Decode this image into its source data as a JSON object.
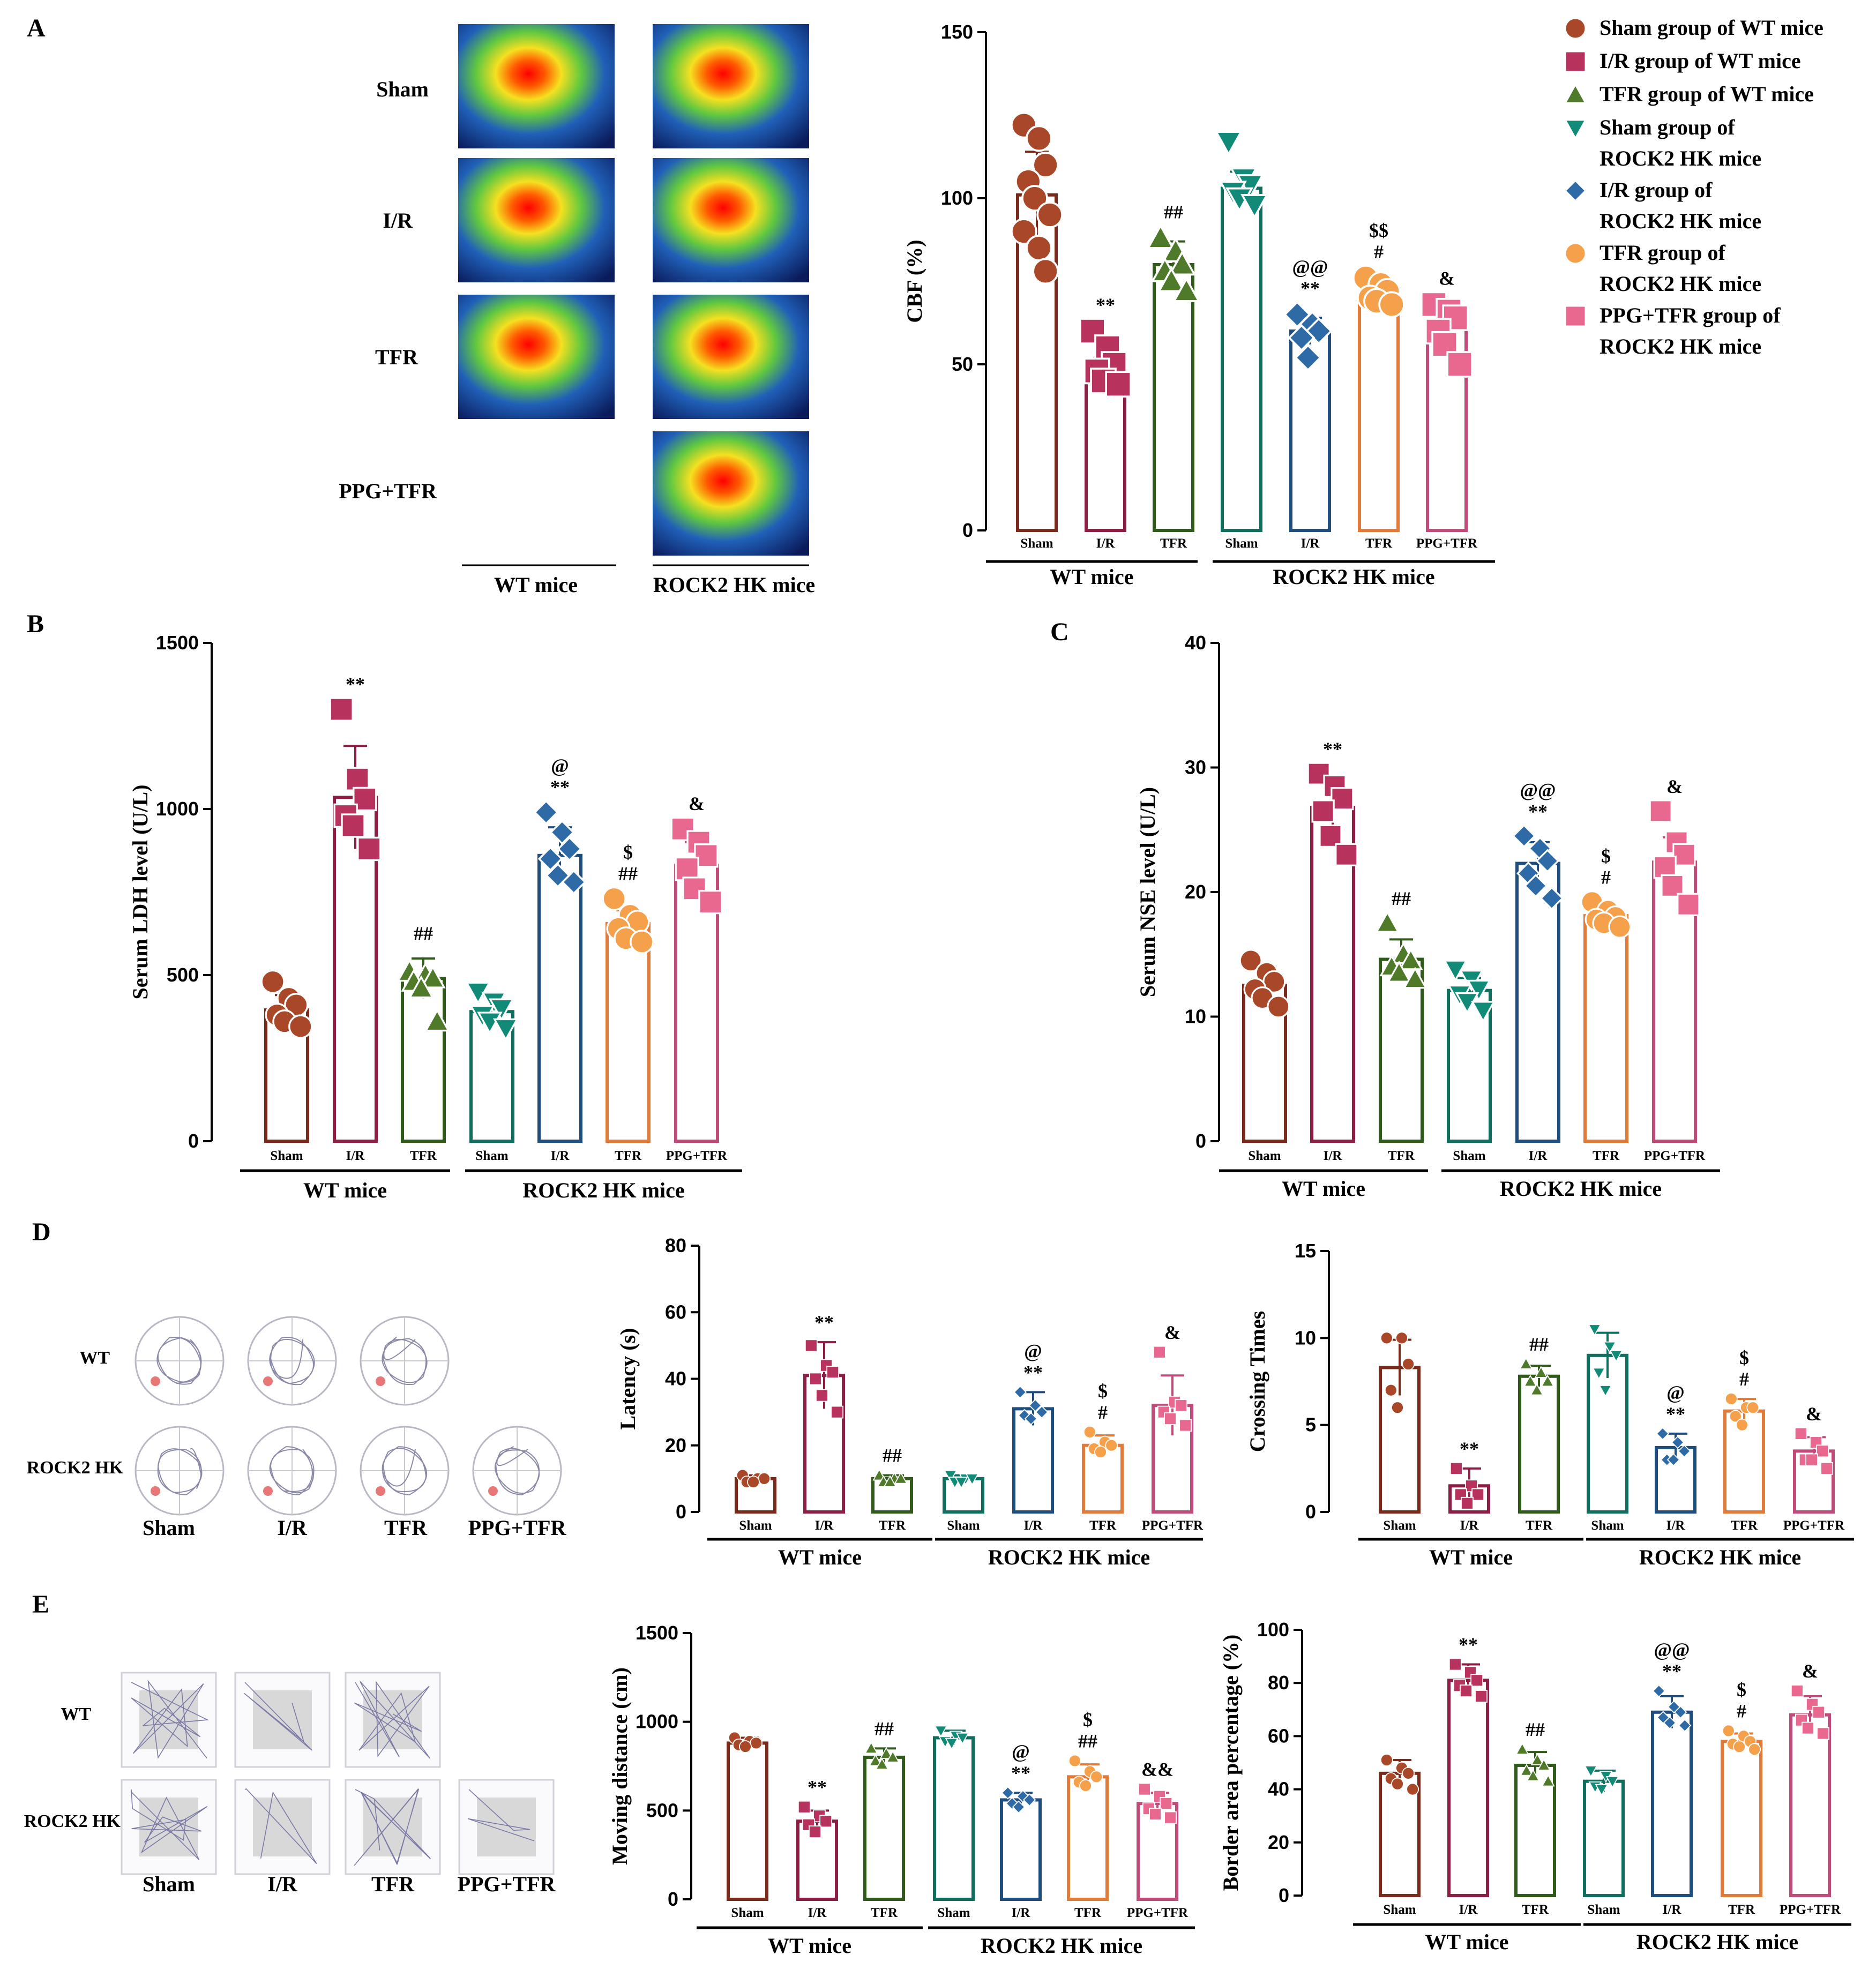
{
  "panel_labels": [
    "A",
    "B",
    "C",
    "D",
    "E"
  ],
  "group_labels": {
    "wt": "WT mice",
    "rock": "ROCK2 HK mice"
  },
  "categories": [
    "Sham",
    "I/R",
    "TFR",
    "Sham",
    "I/R",
    "TFR",
    "PPG+TFR"
  ],
  "colors": [
    "#7a2a1a",
    "#8c1d45",
    "#2f5a1a",
    "#0f6e5e",
    "#1f4e7e",
    "#e27a3a",
    "#c04a7a"
  ],
  "marker_colors": [
    "#a84828",
    "#b8325e",
    "#4e7a2a",
    "#128a78",
    "#2e6aa6",
    "#f5a04a",
    "#e86890"
  ],
  "markers": [
    "circle",
    "square",
    "triangle-up",
    "triangle-down",
    "diamond",
    "circle",
    "square"
  ],
  "legend": [
    {
      "marker": "circle",
      "color": "#a84828",
      "lines": [
        "Sham group of WT mice"
      ]
    },
    {
      "marker": "square",
      "color": "#b8325e",
      "lines": [
        "I/R group of WT mice"
      ]
    },
    {
      "marker": "triangle-up",
      "color": "#4e7a2a",
      "lines": [
        "TFR group of WT mice"
      ]
    },
    {
      "marker": "triangle-down",
      "color": "#128a78",
      "lines": [
        "Sham group of",
        "ROCK2 HK mice"
      ]
    },
    {
      "marker": "diamond",
      "color": "#2e6aa6",
      "lines": [
        "I/R group of",
        "ROCK2 HK mice"
      ]
    },
    {
      "marker": "circle",
      "color": "#f5a04a",
      "lines": [
        "TFR group of",
        "ROCK2 HK mice"
      ]
    },
    {
      "marker": "square",
      "color": "#e86890",
      "lines": [
        "PPG+TFR group of",
        "ROCK2 HK mice"
      ]
    }
  ],
  "panel_a_images": {
    "rows": [
      "Sham",
      "I/R",
      "TFR",
      "PPG+TFR"
    ],
    "columns": [
      "WT mice",
      "ROCK2 HK mice"
    ]
  },
  "panel_d_images": {
    "rows": [
      "WT",
      "ROCK2 HK"
    ],
    "columns": [
      "Sham",
      "I/R",
      "TFR",
      "PPG+TFR"
    ]
  },
  "panel_e_images": {
    "rows": [
      "WT",
      "ROCK2 HK"
    ],
    "columns": [
      "Sham",
      "I/R",
      "TFR",
      "PPG+TFR"
    ]
  },
  "chart_data": [
    {
      "id": "A",
      "type": "bar",
      "ylabel": "CBF (%)",
      "ylim": [
        0,
        150
      ],
      "yticks": [
        0,
        50,
        100,
        150
      ],
      "categories": [
        "Sham",
        "I/R",
        "TFR",
        "Sham",
        "I/R",
        "TFR",
        "PPG+TFR"
      ],
      "values": [
        101,
        47,
        80,
        103,
        60,
        70,
        61
      ],
      "errors": [
        13,
        5,
        7,
        5,
        4,
        3,
        5
      ],
      "points": [
        [
          122,
          118,
          110,
          105,
          100,
          95,
          90,
          85,
          78
        ],
        [
          60,
          55,
          50,
          48,
          45,
          44
        ],
        [
          88,
          84,
          80,
          78,
          75,
          72
        ],
        [
          117,
          106,
          104,
          102,
          100,
          98
        ],
        [
          65,
          62,
          60,
          58,
          52
        ],
        [
          76,
          74,
          72,
          70,
          69,
          68
        ],
        [
          68,
          66,
          64,
          60,
          56,
          50
        ]
      ],
      "sig": [
        "",
        "**",
        "##",
        "",
        "@@|**",
        "$$|#",
        "&"
      ]
    },
    {
      "id": "B",
      "type": "bar",
      "ylabel": "Serum LDH level (U/L)",
      "ylim": [
        0,
        1500
      ],
      "yticks": [
        0,
        500,
        1000,
        1500
      ],
      "categories": [
        "Sham",
        "I/R",
        "TFR",
        "Sham",
        "I/R",
        "TFR",
        "PPG+TFR"
      ],
      "values": [
        395,
        1035,
        490,
        390,
        860,
        655,
        830
      ],
      "errors": [
        45,
        155,
        60,
        50,
        85,
        40,
        70
      ],
      "points": [
        [
          480,
          430,
          410,
          380,
          360,
          345
        ],
        [
          1300,
          1090,
          1030,
          980,
          950,
          880
        ],
        [
          510,
          500,
          490,
          480,
          460,
          360
        ],
        [
          450,
          420,
          400,
          380,
          360,
          340
        ],
        [
          990,
          930,
          880,
          850,
          800,
          780
        ],
        [
          730,
          680,
          660,
          640,
          610,
          600
        ],
        [
          940,
          900,
          860,
          820,
          760,
          720
        ]
      ],
      "sig": [
        "",
        "**",
        "##",
        "",
        "@|**",
        "$|##",
        "&"
      ]
    },
    {
      "id": "C",
      "type": "bar",
      "ylabel": "Serum NSE level (U/L)",
      "ylim": [
        0,
        40
      ],
      "yticks": [
        0,
        10,
        20,
        30,
        40
      ],
      "categories": [
        "Sham",
        "I/R",
        "TFR",
        "Sham",
        "I/R",
        "TFR",
        "PPG+TFR"
      ],
      "values": [
        12.5,
        26.8,
        14.6,
        12.1,
        22.3,
        18.1,
        22.4
      ],
      "errors": [
        1.5,
        2.0,
        1.6,
        1.0,
        1.7,
        0.7,
        2.0
      ],
      "points": [
        [
          14.5,
          13.5,
          12.8,
          12.2,
          11.5,
          10.8
        ],
        [
          29.5,
          28.5,
          27.5,
          26.5,
          24.5,
          23.0
        ],
        [
          17.5,
          15.0,
          14.5,
          14.0,
          13.5,
          13.0
        ],
        [
          13.8,
          13.0,
          12.2,
          11.8,
          11.2,
          10.5
        ],
        [
          24.5,
          23.5,
          22.5,
          21.5,
          20.5,
          19.5
        ],
        [
          19.2,
          18.5,
          18.0,
          17.8,
          17.5,
          17.2
        ],
        [
          26.5,
          24.0,
          23.0,
          22.0,
          20.5,
          19.0
        ]
      ],
      "sig": [
        "",
        "**",
        "##",
        "",
        "@@|**",
        "$|#",
        "&"
      ]
    },
    {
      "id": "D1",
      "type": "bar",
      "ylabel": "Latency (s)",
      "ylim": [
        0,
        80
      ],
      "yticks": [
        0,
        20,
        40,
        60,
        80
      ],
      "categories": [
        "Sham",
        "I/R",
        "TFR",
        "Sham",
        "I/R",
        "TFR",
        "PPG+TFR"
      ],
      "values": [
        10,
        41,
        10,
        10,
        31,
        20,
        32
      ],
      "errors": [
        1,
        10,
        1,
        1,
        5,
        3,
        9
      ],
      "points": [
        [
          11,
          10,
          10,
          9,
          9
        ],
        [
          50,
          44,
          42,
          40,
          35,
          30
        ],
        [
          11,
          10,
          10,
          9,
          9
        ],
        [
          11,
          10,
          10,
          9,
          9
        ],
        [
          36,
          32,
          30,
          29,
          28
        ],
        [
          24,
          21,
          20,
          19,
          18
        ],
        [
          48,
          33,
          32,
          30,
          28,
          26
        ]
      ],
      "sig": [
        "",
        "**",
        "##",
        "",
        "@|**",
        "$|#",
        "&"
      ]
    },
    {
      "id": "D2",
      "type": "bar",
      "ylabel": "Crossing Times",
      "ylim": [
        0,
        15
      ],
      "yticks": [
        0,
        5,
        10,
        15
      ],
      "categories": [
        "Sham",
        "I/R",
        "TFR",
        "Sham",
        "I/R",
        "TFR",
        "PPG+TFR"
      ],
      "values": [
        8.3,
        1.5,
        7.8,
        9.0,
        3.7,
        5.8,
        3.5
      ],
      "errors": [
        1.6,
        1.0,
        0.6,
        1.3,
        0.8,
        0.7,
        0.8
      ],
      "points": [
        [
          10,
          10,
          8.5,
          7,
          6
        ],
        [
          2.5,
          1.5,
          1,
          1,
          0.5
        ],
        [
          8.5,
          8,
          7.5,
          7.5,
          7
        ],
        [
          10.5,
          9.5,
          9,
          8,
          7
        ],
        [
          4.5,
          4,
          3.5,
          3,
          3
        ],
        [
          6.5,
          6,
          6,
          5.5,
          5
        ],
        [
          4.5,
          4,
          3.5,
          3,
          3,
          2.5
        ]
      ],
      "sig": [
        "",
        "**",
        "##",
        "",
        "@|**",
        "$|#",
        "&"
      ]
    },
    {
      "id": "E1",
      "type": "bar",
      "ylabel": "Moving distance (cm)",
      "ylim": [
        0,
        1500
      ],
      "yticks": [
        0,
        500,
        1000,
        1500
      ],
      "categories": [
        "Sham",
        "I/R",
        "TFR",
        "Sham",
        "I/R",
        "TFR",
        "PPG+TFR"
      ],
      "values": [
        880,
        440,
        800,
        910,
        560,
        690,
        540
      ],
      "errors": [
        30,
        60,
        50,
        40,
        40,
        70,
        60
      ],
      "points": [
        [
          910,
          890,
          880,
          870,
          860
        ],
        [
          520,
          470,
          440,
          420,
          380
        ],
        [
          850,
          820,
          800,
          780,
          760
        ],
        [
          950,
          920,
          910,
          890,
          880
        ],
        [
          600,
          580,
          560,
          540,
          520
        ],
        [
          780,
          720,
          690,
          660,
          640
        ],
        [
          620,
          580,
          540,
          510,
          480,
          460
        ]
      ],
      "sig": [
        "",
        "**",
        "##",
        "",
        "@|**",
        "$|##",
        "&&"
      ]
    },
    {
      "id": "E2",
      "type": "bar",
      "ylabel": "Border area percentage (%)",
      "ylim": [
        0,
        100
      ],
      "yticks": [
        0,
        20,
        40,
        60,
        80,
        100
      ],
      "categories": [
        "Sham",
        "I/R",
        "TFR",
        "Sham",
        "I/R",
        "TFR",
        "PPG+TFR"
      ],
      "values": [
        46,
        81,
        49,
        43,
        69,
        58,
        68
      ],
      "errors": [
        5,
        6,
        5,
        4,
        6,
        3,
        7
      ],
      "points": [
        [
          51,
          48,
          46,
          44,
          42,
          40
        ],
        [
          87,
          84,
          81,
          79,
          77,
          75
        ],
        [
          55,
          51,
          49,
          47,
          45,
          43
        ],
        [
          47,
          45,
          43,
          41,
          40
        ],
        [
          77,
          71,
          69,
          67,
          65,
          64
        ],
        [
          62,
          60,
          58,
          57,
          56,
          55
        ],
        [
          77,
          72,
          69,
          66,
          63,
          61
        ]
      ],
      "sig": [
        "",
        "**",
        "##",
        "",
        "@@|**",
        "$|#",
        "&"
      ]
    }
  ]
}
